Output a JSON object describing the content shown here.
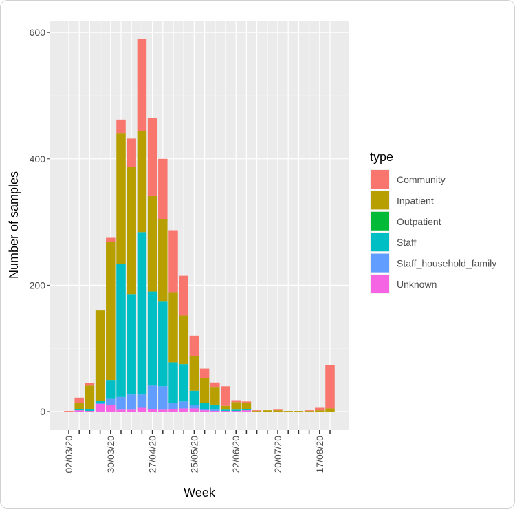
{
  "chart_data": {
    "type": "stacked-bar",
    "x_label": "Week",
    "y_label": "Number of samples",
    "legend_title": "type",
    "categories": [
      "02/03/20",
      null,
      null,
      null,
      "30/03/20",
      null,
      null,
      null,
      "27/04/20",
      null,
      null,
      null,
      "25/05/20",
      null,
      null,
      null,
      "22/06/20",
      null,
      null,
      null,
      "20/07/20",
      null,
      null,
      null,
      "17/08/20",
      null
    ],
    "series": [
      {
        "name": "Community",
        "color": "#F8766D",
        "values": [
          1,
          8,
          4,
          0,
          7,
          21,
          45,
          146,
          123,
          95,
          99,
          63,
          32,
          15,
          8,
          31,
          3,
          2,
          1,
          0,
          1,
          0,
          0,
          1,
          4,
          69
        ]
      },
      {
        "name": "Inpatient",
        "color": "#B79F00",
        "values": [
          0,
          10,
          37,
          143,
          218,
          207,
          201,
          160,
          151,
          131,
          110,
          77,
          55,
          39,
          27,
          6,
          12,
          10,
          1,
          2,
          2,
          1,
          1,
          1,
          2,
          5
        ]
      },
      {
        "name": "Outpatient",
        "color": "#00BA38",
        "values": [
          0,
          0,
          0,
          0,
          0,
          0,
          0,
          0,
          0,
          0,
          0,
          0,
          0,
          0,
          0,
          0,
          0,
          0,
          0,
          0,
          0,
          0,
          0,
          0,
          0,
          0
        ]
      },
      {
        "name": "Staff",
        "color": "#00BFC4",
        "values": [
          0,
          2,
          3,
          3,
          30,
          211,
          159,
          257,
          149,
          134,
          64,
          59,
          23,
          10,
          8,
          2,
          2,
          2,
          0,
          0,
          0,
          0,
          0,
          0,
          0,
          0
        ]
      },
      {
        "name": "Staff_household_family",
        "color": "#619CFF",
        "values": [
          0,
          0,
          0,
          2,
          10,
          20,
          24,
          21,
          37,
          37,
          10,
          11,
          5,
          2,
          2,
          0,
          0,
          0,
          0,
          0,
          0,
          0,
          0,
          0,
          0,
          0
        ]
      },
      {
        "name": "Unknown",
        "color": "#F564E3",
        "values": [
          0,
          2,
          1,
          12,
          10,
          3,
          3,
          6,
          4,
          3,
          4,
          5,
          5,
          2,
          1,
          1,
          1,
          2,
          0,
          0,
          0,
          0,
          0,
          0,
          0,
          0
        ]
      }
    ],
    "ylim": [
      -29.4,
      618.7
    ],
    "yticks": [
      0,
      200,
      400,
      600
    ],
    "grid": true
  }
}
